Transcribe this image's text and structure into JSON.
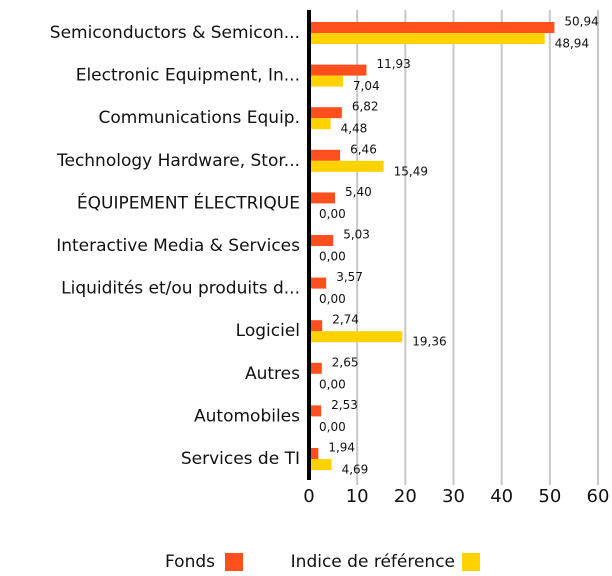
{
  "chart_data": {
    "type": "bar",
    "orientation": "horizontal",
    "categories": [
      "Semiconductors & Semicon...",
      "Electronic Equipment, In...",
      "Communications Equip.",
      "Technology Hardware, Stor...",
      "ÉQUIPEMENT ÉLECTRIQUE",
      "Interactive Media & Services",
      "Liquidités et/ou produits d...",
      "Logiciel",
      "Autres",
      "Automobiles",
      "Services de TI"
    ],
    "series": [
      {
        "name": "Fonds",
        "color": "#ff4f1f",
        "values": [
          50.94,
          11.93,
          6.82,
          6.46,
          5.4,
          5.03,
          3.57,
          2.74,
          2.65,
          2.53,
          1.94
        ],
        "value_labels": [
          "50,94",
          "11,93",
          "6,82",
          "6,46",
          "5,40",
          "5,03",
          "3,57",
          "2,74",
          "2,65",
          "2,53",
          "1,94"
        ]
      },
      {
        "name": "Indice de référence",
        "color": "#ffd200",
        "values": [
          48.94,
          7.04,
          4.48,
          15.49,
          0.0,
          0.0,
          0.0,
          19.36,
          0.0,
          0.0,
          4.69
        ],
        "value_labels": [
          "48,94",
          "7,04",
          "4,48",
          "15,49",
          "0,00",
          "0,00",
          "0,00",
          "19,36",
          "0,00",
          "0,00",
          "4,69"
        ]
      }
    ],
    "xlim": [
      0,
      60
    ],
    "xticks": [
      0,
      10,
      20,
      30,
      40,
      50,
      60
    ],
    "grid": true,
    "legend": "bottom"
  }
}
